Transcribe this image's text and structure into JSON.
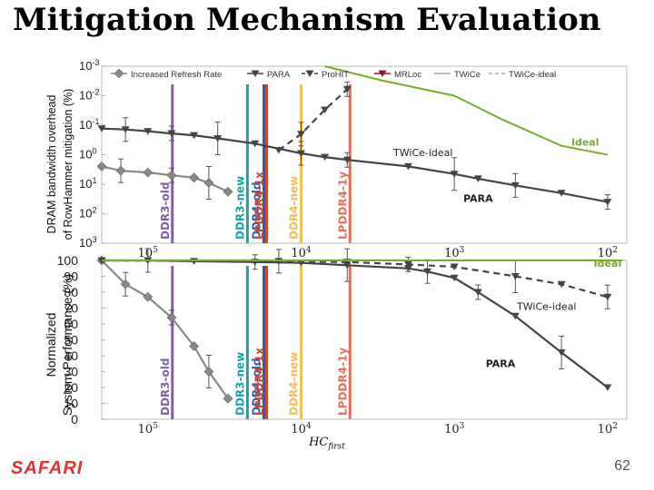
{
  "slide": {
    "title": "Mitigation Mechanism Evaluation",
    "page_number": "62",
    "logo_text": "SAFARI"
  },
  "colors": {
    "ddr3_old": "#8060a8",
    "ddr3_new": "#1aa3a3",
    "ddr4_old": "#2a5fb0",
    "lpddr4_1x": "#d2452a",
    "ddr4_new": "#f0c05a",
    "lpddr4_1y": "#e07060",
    "twice_ideal": "#7aad2a",
    "series_dark": "#444444",
    "mrloc": "#8b1a2a"
  },
  "chart_data": [
    {
      "type": "line",
      "panel": "top",
      "ylabel_lines": [
        "DRAM bandwidth overhead",
        "of RowHammer mitigation (%)"
      ],
      "xscale": "log",
      "x_reversed": true,
      "xlim": [
        200000,
        75
      ],
      "yscale": "log",
      "y_reversed": true,
      "ylim": [
        0.001,
        1000
      ],
      "ytick_labels": [
        {
          "value": 0.001,
          "base": "10",
          "exp": "-3"
        },
        {
          "value": 0.01,
          "base": "10",
          "exp": "-2"
        },
        {
          "value": 0.1,
          "base": "10",
          "exp": "-1"
        },
        {
          "value": 1,
          "base": "10",
          "exp": "0"
        },
        {
          "value": 10,
          "base": "10",
          "exp": "1"
        },
        {
          "value": 100,
          "base": "10",
          "exp": "2"
        },
        {
          "value": 1000,
          "base": "10",
          "exp": "3"
        }
      ],
      "xtick_labels": [
        {
          "value": 100000,
          "base": "10",
          "exp": "5"
        },
        {
          "value": 10000,
          "base": "10",
          "exp": "4"
        },
        {
          "value": 1000,
          "base": "10",
          "exp": "3"
        },
        {
          "value": 100,
          "base": "10",
          "exp": "2"
        }
      ],
      "legend": [
        {
          "label": "Increased Refresh Rate",
          "marker": "diamond",
          "color": "#888888",
          "style": "solid"
        },
        {
          "label": "PARA",
          "marker": "triangle-down",
          "color": "#444444",
          "style": "solid"
        },
        {
          "label": "ProHIT",
          "marker": "triangle-down",
          "color": "#444444",
          "style": "dashed"
        },
        {
          "label": "MRLoc",
          "marker": "triangle-down",
          "color": "#8b1a2a",
          "style": "solid"
        },
        {
          "label": "TWiCe",
          "marker": "none",
          "color": "#aaaaaa",
          "style": "solid"
        },
        {
          "label": "TWiCe-ideal",
          "marker": "none",
          "color": "#aaaaaa",
          "style": "dashed"
        }
      ],
      "series": [
        {
          "name": "Increased Refresh Rate",
          "style": "solid",
          "marker": "diamond",
          "color": "#888888",
          "x": [
            200000,
            150000,
            100000,
            70000,
            50000,
            40000,
            30000
          ],
          "y": [
            2.5,
            3.5,
            4,
            5,
            6,
            9,
            18
          ]
        },
        {
          "name": "PARA",
          "style": "solid",
          "marker": "triangle-down",
          "color": "#444444",
          "x": [
            200000,
            140000,
            100000,
            70000,
            50000,
            35000,
            20000,
            10000,
            7000,
            5000,
            2000,
            1000,
            700,
            400,
            200,
            100
          ],
          "y": [
            0.13,
            0.14,
            0.16,
            0.19,
            0.22,
            0.28,
            0.42,
            0.9,
            1.2,
            1.5,
            2.5,
            4.5,
            6.5,
            11,
            20,
            40
          ]
        },
        {
          "name": "ProHIT",
          "style": "dashed",
          "marker": "triangle-down",
          "color": "#444444",
          "x": [
            14000,
            10000,
            7000,
            5000
          ],
          "y": [
            0.7,
            0.2,
            0.03,
            0.006
          ]
        },
        {
          "name": "TWiCe-ideal",
          "style": "solid",
          "marker": "none",
          "color": "#7aad2a",
          "x": [
            7000,
            3000,
            1000,
            500,
            200,
            100
          ],
          "y": [
            0.001,
            0.003,
            0.01,
            0.06,
            0.5,
            1
          ]
        }
      ],
      "annotations": [
        {
          "text": "Ideal",
          "x": 140,
          "y": 0.5,
          "color": "#7aad2a",
          "bold": true
        },
        {
          "text": "TWiCe-ideal",
          "x": 1600,
          "y": 1.1,
          "color": "#222222",
          "bold": false
        },
        {
          "text": "PARA",
          "x": 700,
          "y": 40,
          "color": "#222222",
          "bold": true
        }
      ]
    },
    {
      "type": "line",
      "panel": "bottom",
      "ylabel_lines": [
        "Normalized",
        "System Performance (%)"
      ],
      "xscale": "log",
      "x_reversed": true,
      "xlim": [
        200000,
        75
      ],
      "ylim": [
        0,
        100
      ],
      "yticks": [
        0,
        10,
        20,
        30,
        40,
        50,
        60,
        70,
        80,
        90,
        100
      ],
      "xtick_labels": [
        {
          "value": 100000,
          "base": "10",
          "exp": "5"
        },
        {
          "value": 10000,
          "base": "10",
          "exp": "4"
        },
        {
          "value": 1000,
          "base": "10",
          "exp": "3"
        },
        {
          "value": 100,
          "base": "10",
          "exp": "2"
        }
      ],
      "xlabel": "HC",
      "xlabel_sub": "first",
      "series": [
        {
          "name": "Increased Refresh Rate",
          "style": "solid",
          "marker": "diamond",
          "color": "#888888",
          "x": [
            200000,
            140000,
            100000,
            70000,
            50000,
            40000,
            30000
          ],
          "y": [
            100,
            85,
            77,
            64,
            46,
            30,
            13
          ]
        },
        {
          "name": "PARA",
          "style": "solid",
          "marker": "triangle-down",
          "color": "#444444",
          "x": [
            200000,
            100000,
            50000,
            20000,
            10000,
            5000,
            2000,
            1500,
            1000,
            700,
            400,
            200,
            100
          ],
          "y": [
            100,
            100,
            99.5,
            99,
            98.5,
            97,
            95,
            93,
            89,
            80,
            65,
            42,
            20
          ]
        },
        {
          "name": "ProHIT",
          "style": "dashed",
          "marker": "triangle-down",
          "color": "#444444",
          "x": [
            200000,
            14000,
            5000,
            2000,
            1000,
            400,
            200,
            100
          ],
          "y": [
            100,
            99.5,
            99,
            97.5,
            96,
            90,
            85,
            77
          ]
        },
        {
          "name": "TWiCe-ideal",
          "style": "solid",
          "marker": "none",
          "color": "#7aad2a",
          "x": [
            200000,
            10000,
            1000,
            100,
            80
          ],
          "y": [
            100,
            100,
            100,
            100,
            100
          ]
        }
      ],
      "annotations": [
        {
          "text": "Ideal",
          "x": 100,
          "y": 96,
          "color": "#7aad2a",
          "bold": true
        },
        {
          "text": "TWiCe-ideal",
          "x": 250,
          "y": 69,
          "color": "#222222",
          "bold": false
        },
        {
          "text": "PARA",
          "x": 500,
          "y": 33,
          "color": "#222222",
          "bold": true
        }
      ]
    }
  ],
  "dram_markers": [
    {
      "label": "DDR3-old",
      "x": 69200,
      "color_key": "ddr3_old"
    },
    {
      "label": "DDR3-new",
      "x": 22400,
      "color_key": "ddr3_new"
    },
    {
      "label": "DDR4-old",
      "x": 17500,
      "color_key": "ddr4_old"
    },
    {
      "label": "LPDDR4-1x",
      "x": 16800,
      "color_key": "lpddr4_1x"
    },
    {
      "label": "DDR4-new",
      "x": 10000,
      "color_key": "ddr4_new"
    },
    {
      "label": "LPDDR4-1y",
      "x": 4800,
      "color_key": "lpddr4_1y"
    }
  ]
}
